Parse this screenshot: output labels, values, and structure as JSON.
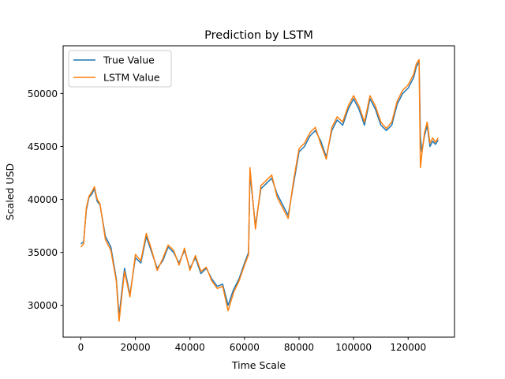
{
  "chart_data": {
    "type": "line",
    "title": "Prediction by LSTM",
    "xlabel": "Time Scale",
    "ylabel": "Scaled USD",
    "xlim": [
      -6500,
      137000
    ],
    "ylim": [
      27000,
      54500
    ],
    "grid": false,
    "legend_position": "top-left",
    "x_ticks": [
      0,
      20000,
      40000,
      60000,
      80000,
      100000,
      120000
    ],
    "x_tick_labels": [
      "0",
      "20000",
      "40000",
      "60000",
      "80000",
      "100000",
      "120000"
    ],
    "y_ticks": [
      30000,
      35000,
      40000,
      45000,
      50000
    ],
    "y_tick_labels": [
      "30000",
      "35000",
      "40000",
      "45000",
      "50000"
    ],
    "x": [
      0,
      1000,
      2000,
      3000,
      4000,
      5000,
      6000,
      7000,
      9000,
      11000,
      13000,
      14000,
      16000,
      18000,
      20000,
      22000,
      24000,
      26000,
      28000,
      30000,
      32000,
      34000,
      36000,
      38000,
      40000,
      42000,
      44000,
      46000,
      48000,
      50000,
      52000,
      54000,
      56000,
      58000,
      60000,
      61500,
      62000,
      64000,
      66000,
      68000,
      70000,
      72000,
      74000,
      76000,
      78000,
      80000,
      82000,
      84000,
      86000,
      88000,
      90000,
      92000,
      94000,
      96000,
      98000,
      100000,
      102000,
      104000,
      106000,
      108000,
      110000,
      112000,
      114000,
      116000,
      118000,
      120000,
      122000,
      123000,
      124000,
      124500,
      125000,
      126000,
      127000,
      128000,
      129000,
      130000,
      131000
    ],
    "series": [
      {
        "name": "True Value",
        "color": "#1f77b4",
        "values": [
          35800,
          36000,
          39000,
          40200,
          40500,
          41000,
          39800,
          39500,
          36500,
          35500,
          32500,
          29000,
          33500,
          31000,
          34500,
          34000,
          36500,
          35000,
          33500,
          34200,
          35500,
          35000,
          34000,
          35200,
          33500,
          34500,
          33000,
          33500,
          32500,
          31800,
          32000,
          30000,
          31500,
          32500,
          34000,
          35000,
          42500,
          37500,
          41000,
          41500,
          42000,
          40500,
          39500,
          38500,
          41500,
          44500,
          45000,
          46000,
          46500,
          45500,
          44000,
          46500,
          47500,
          47000,
          48500,
          49500,
          48500,
          47000,
          49500,
          48500,
          47000,
          46500,
          47000,
          49000,
          50000,
          50500,
          51500,
          52500,
          53000,
          46000,
          44500,
          46000,
          47000,
          45000,
          45500,
          45200,
          45600
        ]
      },
      {
        "name": "LSTM Value",
        "color": "#ff7f0e",
        "values": [
          35500,
          35800,
          39200,
          40300,
          40700,
          41200,
          40000,
          39600,
          36200,
          35200,
          32300,
          28500,
          33200,
          30800,
          34800,
          34200,
          36800,
          35200,
          33300,
          34400,
          35700,
          35200,
          33800,
          35400,
          33300,
          34700,
          33200,
          33600,
          32300,
          31600,
          31800,
          29500,
          31200,
          32300,
          33800,
          34800,
          43000,
          37200,
          41300,
          41800,
          42300,
          40200,
          39200,
          38200,
          41800,
          44800,
          45300,
          46300,
          46800,
          45200,
          43800,
          46800,
          47800,
          47300,
          48800,
          49800,
          48800,
          47300,
          49800,
          48800,
          47300,
          46700,
          47300,
          49300,
          50300,
          50800,
          51800,
          52800,
          53200,
          43000,
          44200,
          46300,
          47300,
          45300,
          45800,
          45400,
          45800
        ]
      }
    ]
  }
}
